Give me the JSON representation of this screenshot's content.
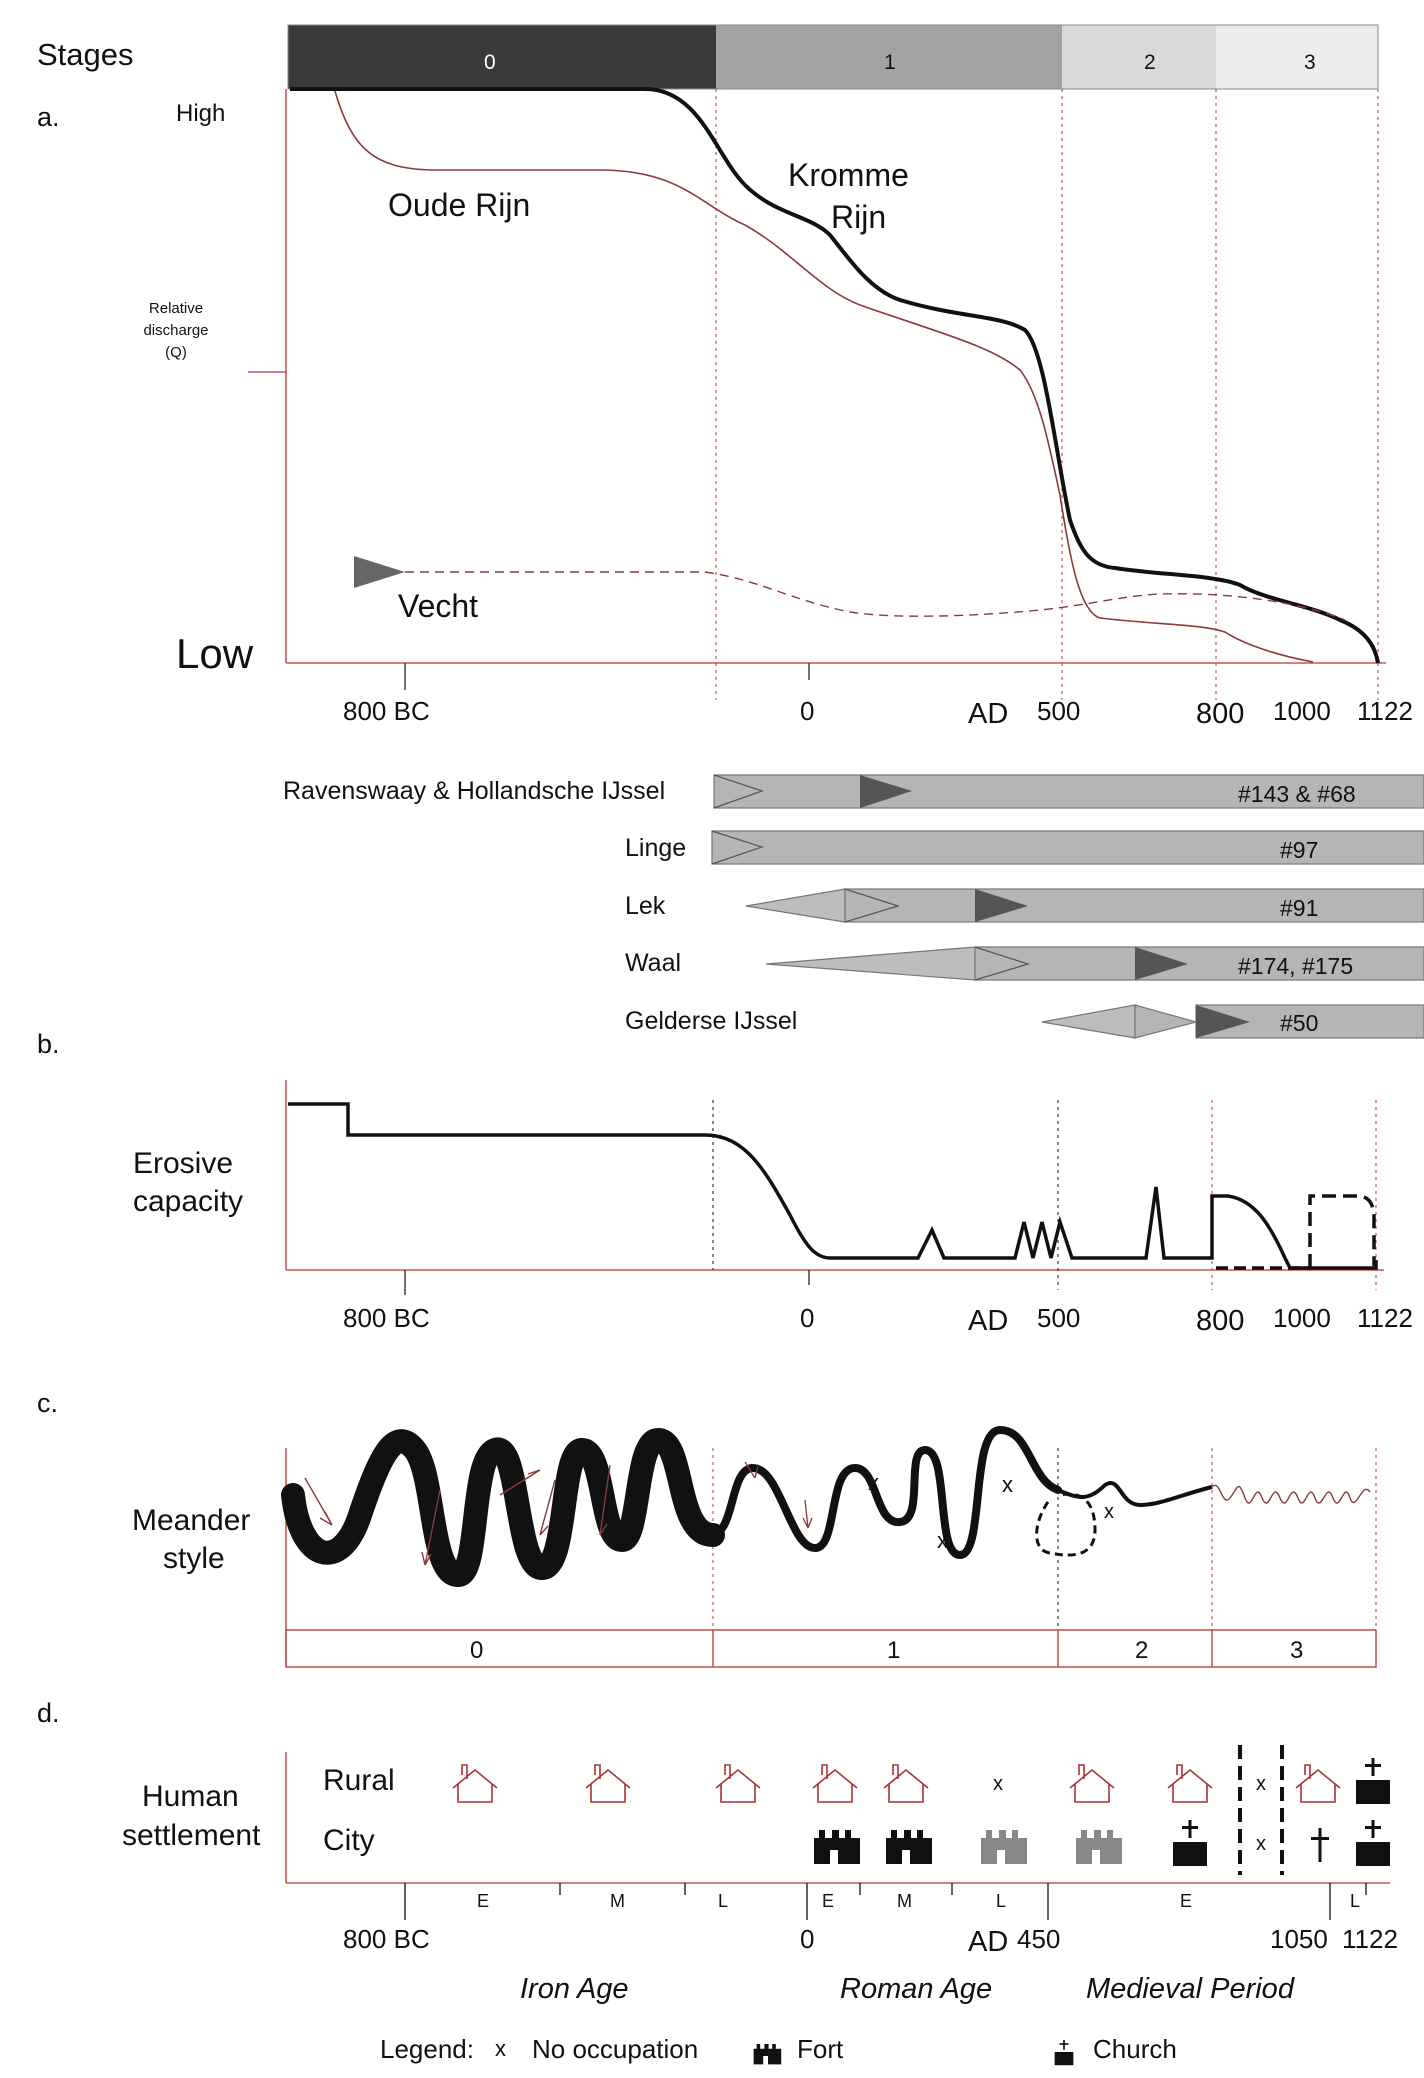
{
  "stages": {
    "label": "Stages",
    "bar": [
      {
        "label": "0",
        "color": "#3a3a3a"
      },
      {
        "label": "1",
        "color": "#a3a3a3"
      },
      {
        "label": "2",
        "color": "#d9d9d9"
      },
      {
        "label": "3",
        "color": "#ececec"
      }
    ]
  },
  "panel_a": {
    "letter": "a.",
    "high_label": "High",
    "low_label": "Low",
    "y_label": [
      "Relative",
      "discharge",
      "(Q)"
    ],
    "rivers": {
      "oude_rijn": "Oude Rijn",
      "kromme_rijn": [
        "Kromme",
        "Rijn"
      ],
      "vecht": "Vecht"
    },
    "axis_ticks": [
      "800 BC",
      "0",
      "AD",
      "500",
      "800",
      "1000",
      "1122"
    ]
  },
  "branches": [
    {
      "name": "Ravenswaay & Hollandsche IJssel",
      "refs": "#143 & #68"
    },
    {
      "name": "Linge",
      "refs": "#97"
    },
    {
      "name": "Lek",
      "refs": "#91"
    },
    {
      "name": "Waal",
      "refs": "#174, #175"
    },
    {
      "name": "Gelderse IJssel",
      "refs": "#50"
    }
  ],
  "panel_b": {
    "letter": "b.",
    "y_label": [
      "Erosive",
      "capacity"
    ],
    "axis_ticks": [
      "800 BC",
      "0",
      "AD",
      "500",
      "800",
      "1000",
      "1122"
    ]
  },
  "panel_c": {
    "letter": "c.",
    "y_label": [
      "Meander",
      "style"
    ],
    "stage_labels": [
      "0",
      "1",
      "2",
      "3"
    ]
  },
  "panel_d": {
    "letter": "d.",
    "y_label": [
      "Human",
      "settlement"
    ],
    "rows": [
      "Rural",
      "City"
    ],
    "sub_periods": [
      "E",
      "M",
      "L",
      "E",
      "M",
      "L",
      "E",
      "L"
    ],
    "axis_ticks": [
      "800 BC",
      "0",
      "AD",
      "450",
      "1050",
      "1122"
    ],
    "periods": [
      "Iron Age",
      "Roman Age",
      "Medieval Period"
    ]
  },
  "legend": {
    "title": "Legend:",
    "items": [
      {
        "symbol": "x",
        "label": "No occupation"
      },
      {
        "symbol": "fort-icon",
        "label": "Fort"
      },
      {
        "symbol": "church-icon",
        "label": "Church"
      }
    ]
  }
}
